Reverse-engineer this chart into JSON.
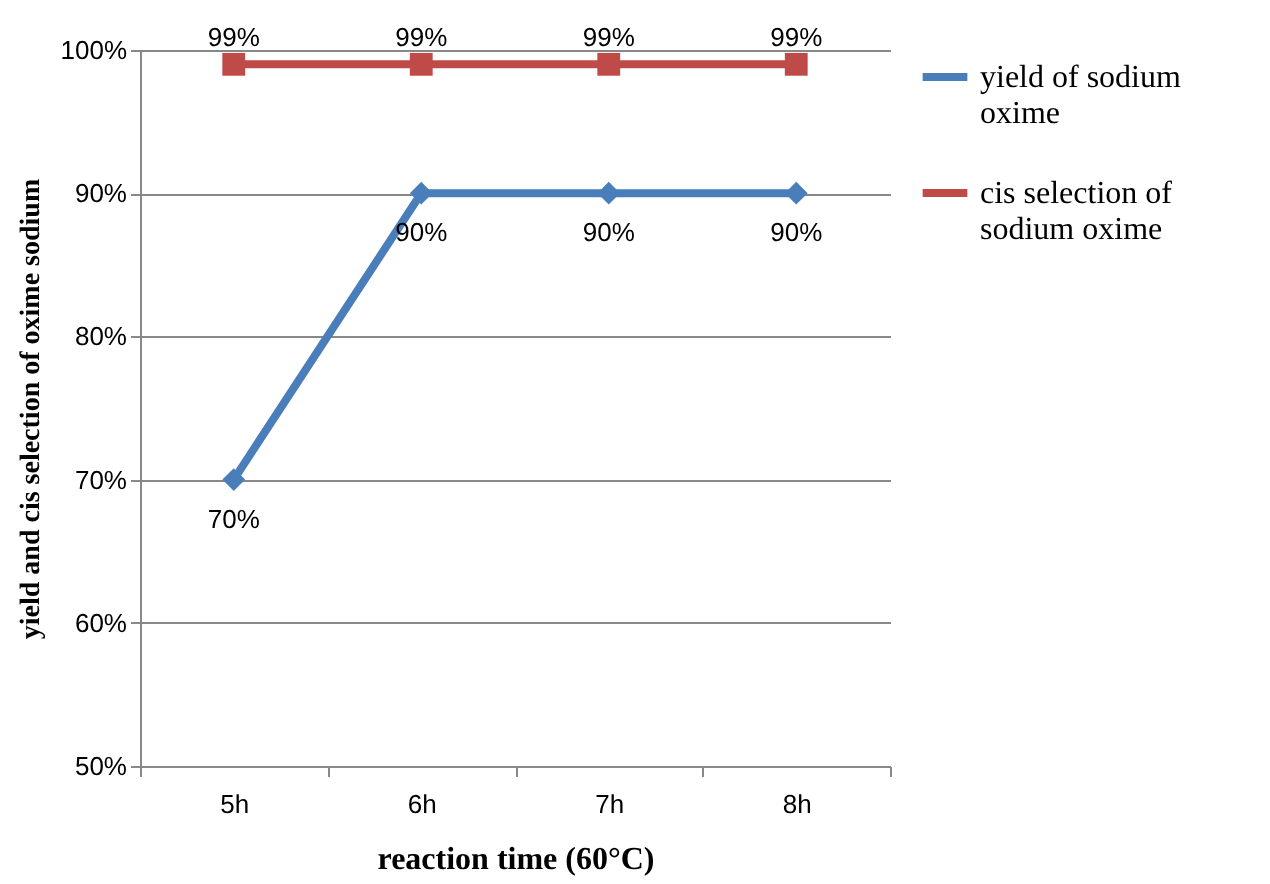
{
  "chart_data": {
    "type": "line",
    "xlabel": "reaction time (60°C)",
    "ylabel": "yield and cis selection of oxime sodium",
    "categories": [
      "5h",
      "6h",
      "7h",
      "8h"
    ],
    "series": [
      {
        "name": "yield of sodium oxime",
        "color": "#4a7ebb",
        "marker": "diamond",
        "values": [
          70,
          90,
          90,
          90
        ],
        "value_labels": [
          "70%",
          "90%",
          "90%",
          "90%"
        ]
      },
      {
        "name": "cis selection of sodium oxime",
        "color": "#be4b48",
        "marker": "square",
        "values": [
          99,
          99,
          99,
          99
        ],
        "value_labels": [
          "99%",
          "99%",
          "99%",
          "99%"
        ]
      }
    ],
    "ylim": [
      50,
      100
    ],
    "yticks": [
      {
        "value": 50,
        "label": "50%"
      },
      {
        "value": 60,
        "label": "60%"
      },
      {
        "value": 70,
        "label": "70%"
      },
      {
        "value": 80,
        "label": "80%"
      },
      {
        "value": 90,
        "label": "90%"
      },
      {
        "value": 100,
        "label": "100%"
      }
    ],
    "grid": "y",
    "legend": "right",
    "line_style": "solid"
  }
}
